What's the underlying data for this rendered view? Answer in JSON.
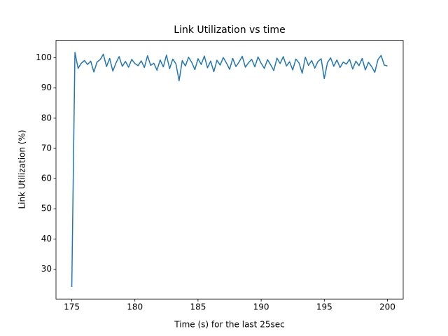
{
  "chart_data": {
    "type": "line",
    "title": "Link Utilization vs time",
    "xlabel": "Time (s) for the last 25sec",
    "ylabel": "Link Utilization (%)",
    "color": "#1f77b4",
    "x": [
      175,
      175.25,
      175.5,
      175.75,
      176,
      176.25,
      176.5,
      176.75,
      177,
      177.25,
      177.5,
      177.75,
      178,
      178.25,
      178.5,
      178.75,
      179,
      179.25,
      179.5,
      179.75,
      180,
      180.25,
      180.5,
      180.75,
      181,
      181.25,
      181.5,
      181.75,
      182,
      182.25,
      182.5,
      182.75,
      183,
      183.25,
      183.5,
      183.75,
      184,
      184.25,
      184.5,
      184.75,
      185,
      185.25,
      185.5,
      185.75,
      186,
      186.25,
      186.5,
      186.75,
      187,
      187.25,
      187.5,
      187.75,
      188,
      188.25,
      188.5,
      188.75,
      189,
      189.25,
      189.5,
      189.75,
      190,
      190.25,
      190.5,
      190.75,
      191,
      191.25,
      191.5,
      191.75,
      192,
      192.25,
      192.5,
      192.75,
      193,
      193.25,
      193.5,
      193.75,
      194,
      194.25,
      194.5,
      194.75,
      195,
      195.25,
      195.5,
      195.75,
      196,
      196.25,
      196.5,
      196.75,
      197,
      197.25,
      197.5,
      197.75,
      198,
      198.25,
      198.5,
      198.75,
      199,
      199.25,
      199.5,
      199.75,
      200
    ],
    "values": [
      24.1,
      101.8,
      96.5,
      98.2,
      99.1,
      97.8,
      98.9,
      95.3,
      98.6,
      99.4,
      101.2,
      97.1,
      99.8,
      95.6,
      98.3,
      100.4,
      97.2,
      98.8,
      96.9,
      99.5,
      98.1,
      97.4,
      99.0,
      96.8,
      100.7,
      97.5,
      98.2,
      95.9,
      99.3,
      97.0,
      100.9,
      96.4,
      99.6,
      98.0,
      92.4,
      99.1,
      97.3,
      100.2,
      98.5,
      96.1,
      99.7,
      97.8,
      100.6,
      96.7,
      98.9,
      95.4,
      99.2,
      97.6,
      100.1,
      98.3,
      96.2,
      99.8,
      97.1,
      98.6,
      100.5,
      96.9,
      98.4,
      99.5,
      97.0,
      100.3,
      98.2,
      96.5,
      99.4,
      97.7,
      95.8,
      99.9,
      98.1,
      100.4,
      97.3,
      98.7,
      96.0,
      99.6,
      98.3,
      94.9,
      100.2,
      97.5,
      99.1,
      96.6,
      98.8,
      99.7,
      93.1,
      98.4,
      100.0,
      97.2,
      99.3,
      96.8,
      98.6,
      97.9,
      99.5,
      96.3,
      98.9,
      97.4,
      99.8,
      96.0,
      98.5,
      97.1,
      95.2,
      99.4,
      100.8,
      97.6,
      97.3
    ],
    "xlim": [
      173.75,
      201.25
    ],
    "ylim": [
      20.1,
      105.8
    ],
    "xticks": [
      175,
      180,
      185,
      190,
      195,
      200
    ],
    "yticks": [
      30,
      40,
      50,
      60,
      70,
      80,
      90,
      100
    ]
  }
}
